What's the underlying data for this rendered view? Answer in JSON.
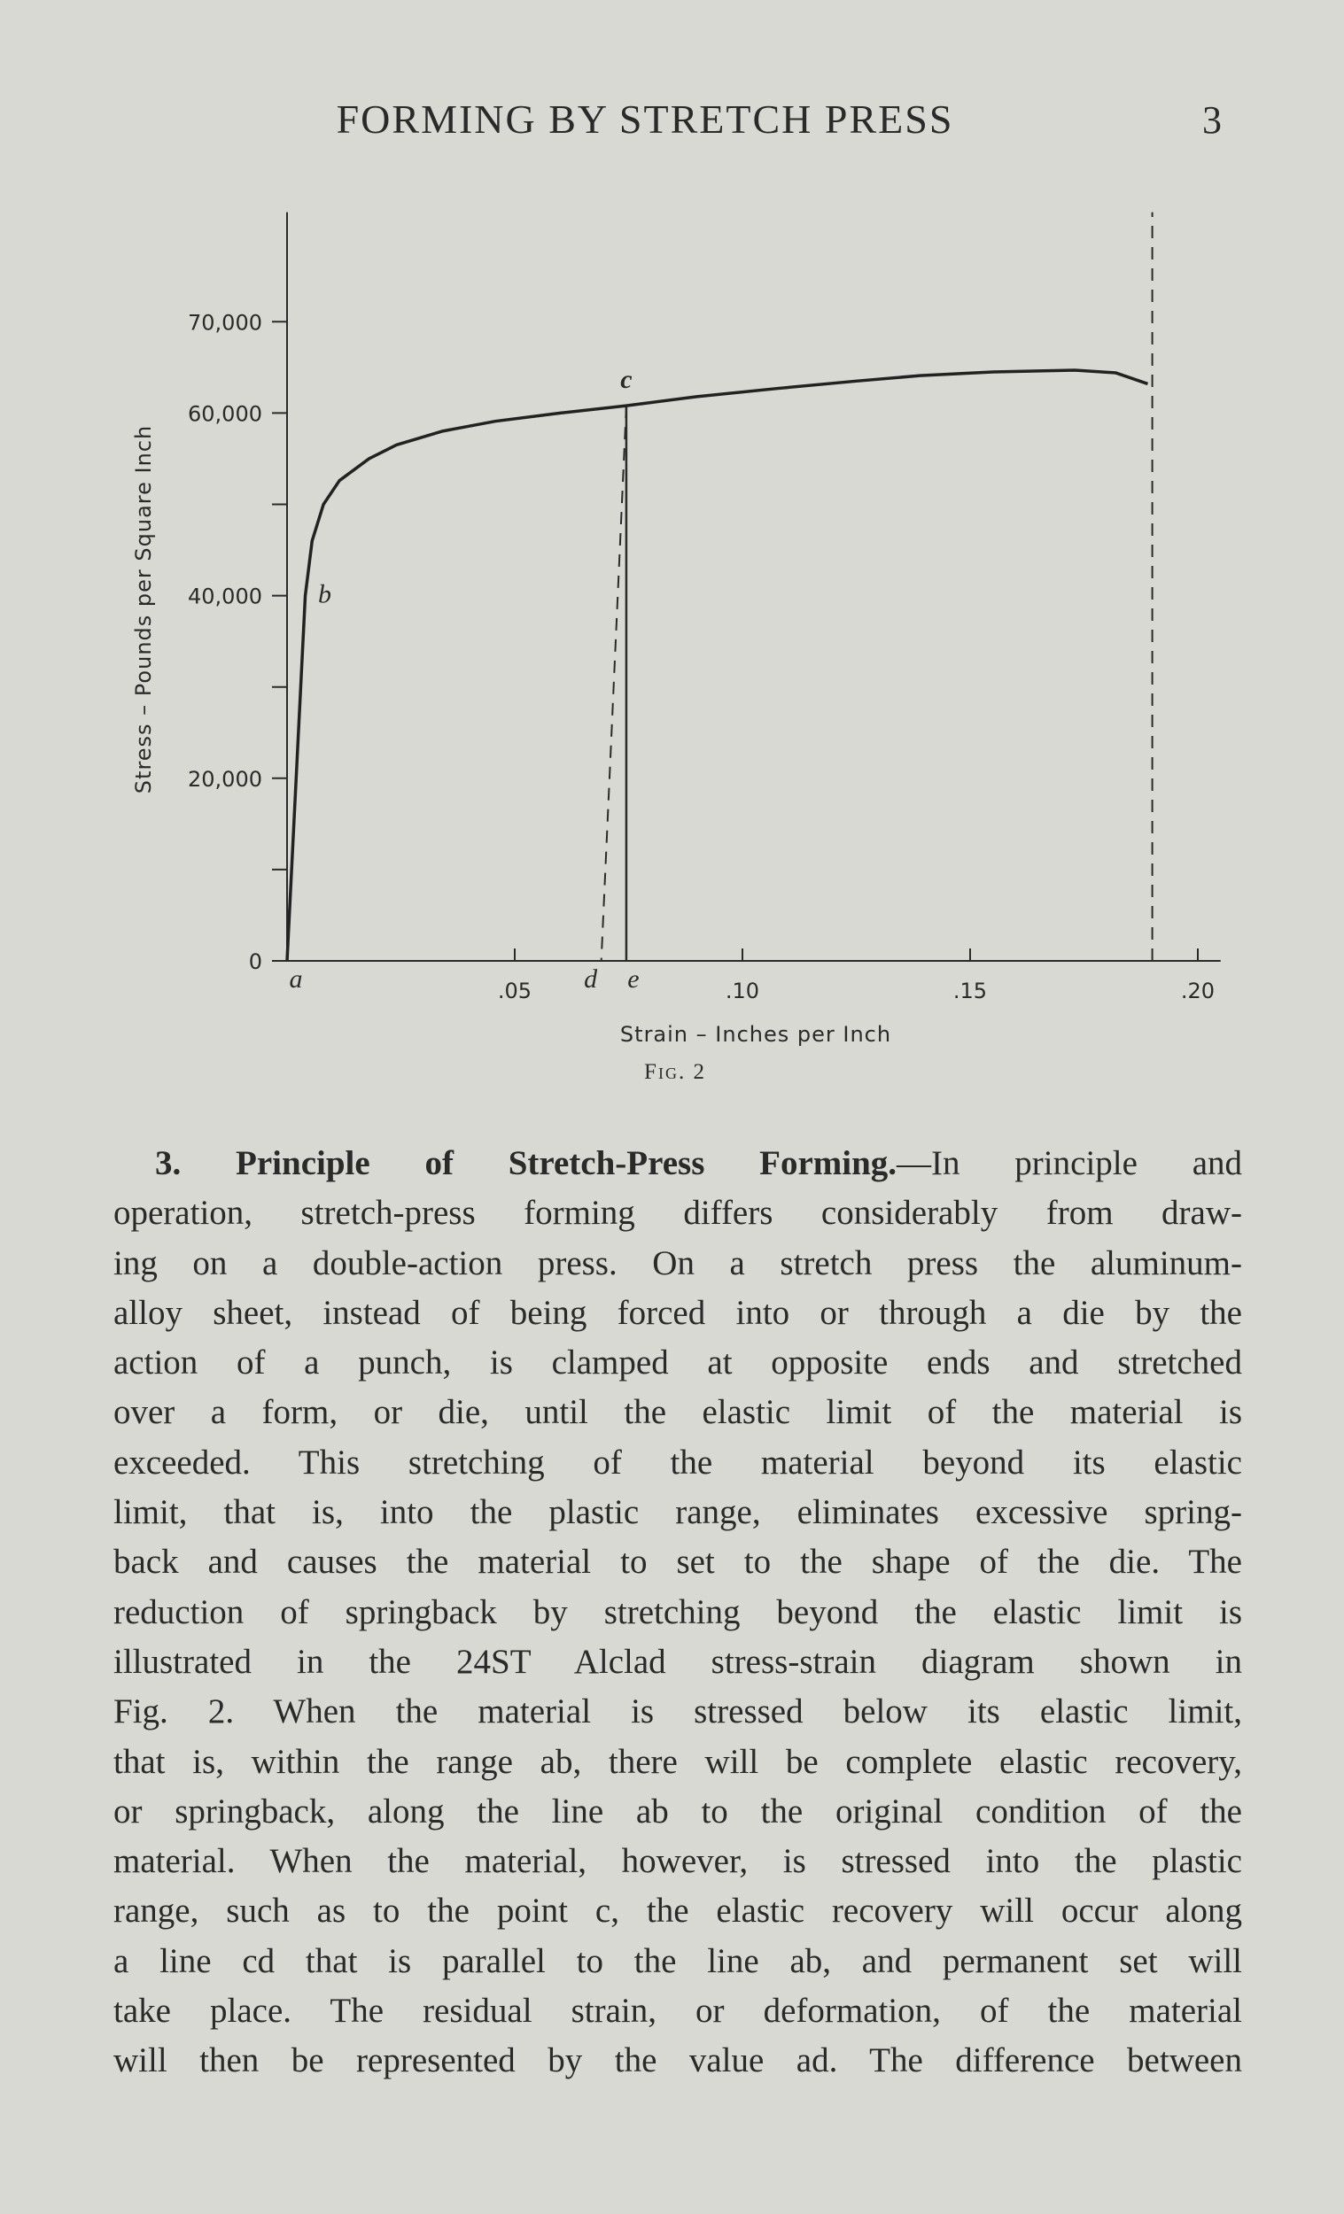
{
  "header": {
    "title": "FORMING BY STRETCH PRESS",
    "page": "3"
  },
  "chart_data": {
    "type": "line",
    "ylabel": "Stress – Pounds per Square Inch",
    "xlabel": "Strain – Inches per Inch",
    "x": [
      0,
      0.004,
      0.0055,
      0.008,
      0.0115,
      0.018,
      0.024,
      0.034,
      0.0457,
      0.06,
      0.0745,
      0.09,
      0.1078,
      0.125,
      0.139,
      0.155,
      0.173,
      0.182,
      0.189
    ],
    "series": [
      {
        "color": "#222222",
        "values": [
          0,
          40000,
          46000,
          50000,
          52600,
          55000,
          56500,
          58000,
          59100,
          60000,
          60800,
          61800,
          62700,
          63500,
          64100,
          64500,
          64700,
          64400,
          63200
        ]
      }
    ],
    "xlim": [
      0,
      0.205
    ],
    "ylim": [
      0,
      82000
    ],
    "xticks": [
      {
        "value": 0.05,
        "label": ".05"
      },
      {
        "value": 0.1,
        "label": ".10"
      },
      {
        "value": 0.15,
        "label": ".15"
      },
      {
        "value": 0.2,
        "label": ".20"
      }
    ],
    "yticks": [
      0,
      {
        "value": 20000,
        "label": "20,000"
      },
      {
        "value": 40000,
        "label": "40,000"
      },
      {
        "value": 60000,
        "label": "60,000"
      },
      {
        "value": 70000,
        "label": "70,000"
      }
    ],
    "minor_yticks": [
      10000,
      30000,
      50000
    ],
    "points": [
      {
        "label": "a",
        "x": 0,
        "y": 0
      },
      {
        "label": "b",
        "x": 0.004,
        "y": 40000
      },
      {
        "label": "c",
        "x": 0.0745,
        "y": 60800
      },
      {
        "label": "d",
        "x": 0.069,
        "y": 0
      },
      {
        "label": "e",
        "x": 0.0745,
        "y": 0
      }
    ],
    "limit_x": 0.19,
    "caption": "Fig. 2"
  },
  "paragraph": {
    "number": "3.",
    "heading": "Principle of Stretch-Press Forming.",
    "lines": [
      "—In principle and",
      "operation, stretch-press forming differs considerably from draw-",
      "ing on a double-action press.  On a stretch press the aluminum-",
      "alloy sheet, instead of being forced into or through a die by the",
      "action of a punch, is clamped at opposite ends and stretched",
      "over a form, or die, until the elastic limit of the material is",
      "exceeded.  This stretching of the material beyond its elastic",
      "limit, that is, into the plastic range, eliminates excessive spring-",
      "back and causes the material to set to the shape of the die.  The",
      "reduction of springback by stretching beyond the elastic limit is",
      "illustrated in the 24ST Alclad stress-strain diagram shown in",
      "Fig. 2.  When the material is stressed below its elastic limit,",
      "that is, within the range ab, there will be complete elastic recovery,",
      "or springback, along the line ab to the original condition of the",
      "material. When the material, however, is stressed into the plastic",
      "range, such as to the point c, the elastic recovery will occur along",
      "a line cd that is parallel to the line ab, and permanent set will",
      "take place. The residual strain, or deformation, of the material",
      "will then be represented by the value ad.  The difference between"
    ]
  }
}
